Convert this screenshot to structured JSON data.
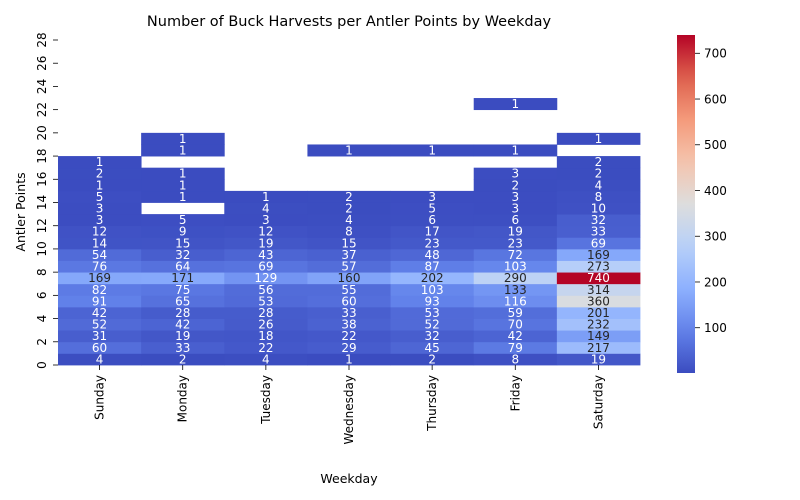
{
  "chart_data": {
    "type": "heatmap",
    "title": "Number of Buck Harvests per Antler Points by Weekday",
    "xlabel": "Weekday",
    "ylabel": "Antler Points",
    "categories": [
      "Sunday",
      "Monday",
      "Tuesday",
      "Wednesday",
      "Thursday",
      "Friday",
      "Saturday"
    ],
    "y_ticks": [
      "0",
      "2",
      "4",
      "6",
      "8",
      "10",
      "12",
      "14",
      "16",
      "18",
      "20",
      "22",
      "24",
      "26",
      "28"
    ],
    "rows": [
      {
        "points": 1,
        "values": [
          4,
          2,
          4,
          1,
          2,
          8,
          19
        ]
      },
      {
        "points": 2,
        "values": [
          60,
          33,
          22,
          29,
          45,
          79,
          217
        ]
      },
      {
        "points": 3,
        "values": [
          31,
          19,
          18,
          22,
          32,
          42,
          149
        ]
      },
      {
        "points": 4,
        "values": [
          52,
          42,
          26,
          38,
          52,
          70,
          232
        ]
      },
      {
        "points": 5,
        "values": [
          42,
          28,
          28,
          33,
          53,
          59,
          201
        ]
      },
      {
        "points": 6,
        "values": [
          91,
          65,
          53,
          60,
          93,
          116,
          360
        ]
      },
      {
        "points": 7,
        "values": [
          82,
          75,
          56,
          55,
          103,
          133,
          314
        ]
      },
      {
        "points": 8,
        "values": [
          169,
          171,
          129,
          160,
          202,
          290,
          740
        ]
      },
      {
        "points": 9,
        "values": [
          76,
          64,
          69,
          57,
          87,
          103,
          273
        ]
      },
      {
        "points": 10,
        "values": [
          54,
          32,
          43,
          37,
          48,
          72,
          169
        ]
      },
      {
        "points": 11,
        "values": [
          14,
          15,
          19,
          15,
          23,
          23,
          69
        ]
      },
      {
        "points": 12,
        "values": [
          12,
          9,
          12,
          8,
          17,
          19,
          33
        ]
      },
      {
        "points": 13,
        "values": [
          3,
          5,
          3,
          4,
          6,
          6,
          32
        ]
      },
      {
        "points": 14,
        "values": [
          3,
          null,
          4,
          2,
          5,
          3,
          10
        ]
      },
      {
        "points": 15,
        "values": [
          5,
          1,
          1,
          2,
          3,
          3,
          8
        ]
      },
      {
        "points": 16,
        "values": [
          1,
          1,
          null,
          null,
          null,
          2,
          4
        ]
      },
      {
        "points": 17,
        "values": [
          2,
          1,
          null,
          null,
          null,
          3,
          2
        ]
      },
      {
        "points": 18,
        "values": [
          1,
          null,
          null,
          null,
          null,
          null,
          2
        ]
      },
      {
        "points": 19,
        "values": [
          null,
          1,
          null,
          1,
          1,
          1,
          null
        ]
      },
      {
        "points": 20,
        "values": [
          null,
          1,
          null,
          null,
          null,
          null,
          1
        ]
      },
      {
        "points": 21,
        "values": [
          null,
          null,
          null,
          null,
          null,
          null,
          null
        ]
      },
      {
        "points": 22,
        "values": [
          null,
          null,
          null,
          null,
          null,
          null,
          null
        ]
      },
      {
        "points": 23,
        "values": [
          null,
          null,
          null,
          null,
          null,
          1,
          null
        ]
      },
      {
        "points": 24,
        "values": [
          null,
          null,
          null,
          null,
          null,
          null,
          null
        ]
      },
      {
        "points": 25,
        "values": [
          null,
          null,
          null,
          null,
          null,
          null,
          null
        ]
      },
      {
        "points": 26,
        "values": [
          null,
          null,
          null,
          null,
          null,
          null,
          null
        ]
      },
      {
        "points": 27,
        "values": [
          null,
          null,
          null,
          null,
          null,
          null,
          null
        ]
      },
      {
        "points": 28,
        "values": [
          null,
          null,
          null,
          null,
          null,
          null,
          null
        ]
      }
    ],
    "colorbar": {
      "colormap": "coolwarm",
      "min": 1,
      "max": 740,
      "ticks": [
        100,
        200,
        300,
        400,
        500,
        600,
        700
      ]
    },
    "annotations": true,
    "grid": false
  }
}
